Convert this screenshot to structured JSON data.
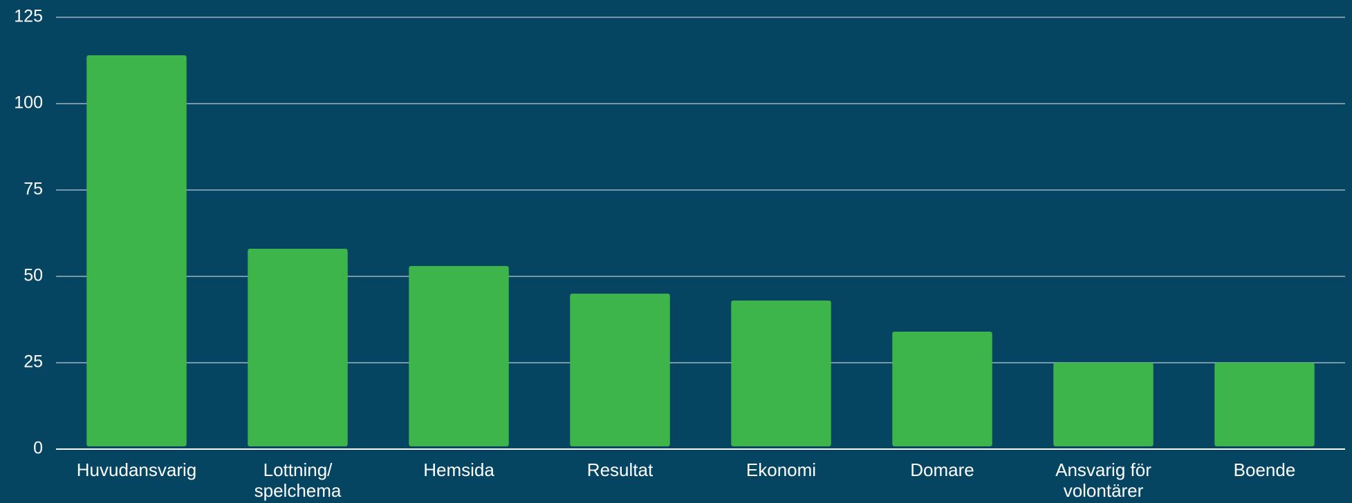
{
  "chart_data": {
    "type": "bar",
    "categories": [
      "Huvudansvarig",
      "Lottning/ spelchema",
      "Hemsida",
      "Resultat",
      "Ekonomi",
      "Domare",
      "Ansvarig för volontärer",
      "Boende"
    ],
    "values": [
      114,
      58,
      53,
      45,
      43,
      34,
      25,
      25
    ],
    "color": "#3db54a",
    "ylim": [
      0,
      125
    ],
    "yticks": [
      0,
      25,
      50,
      75,
      100,
      125
    ],
    "grid": true
  }
}
